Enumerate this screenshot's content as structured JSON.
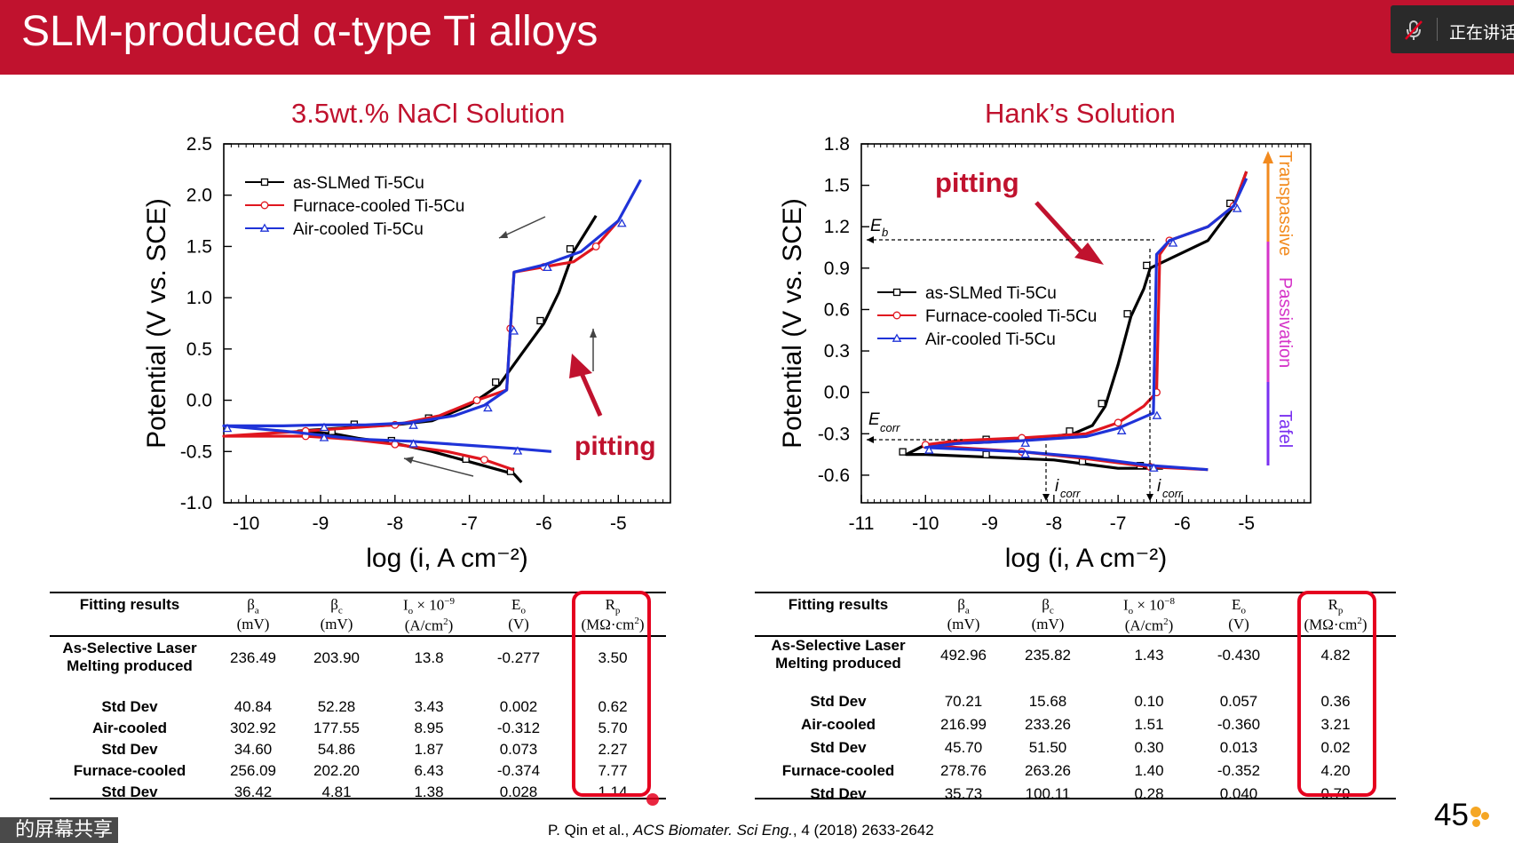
{
  "slide": {
    "title": "SLM-produced α-type Ti alloys",
    "page_number": "45",
    "citation_pre": "P. Qin et al., ",
    "citation_journal": "ACS Biomater. Sci Eng.",
    "citation_post": ", 4 (2018) 2633-2642",
    "share_banner": "的屏幕共享",
    "meeting_status": "正在讲话",
    "accent_color": "#c0122e"
  },
  "chart_data": [
    {
      "type": "line",
      "title": "3.5wt.% NaCl Solution",
      "xlabel": "log (i, A cm⁻²)",
      "ylabel": "Potential (V vs. SCE)",
      "xlim": [
        -10.3,
        -4.3
      ],
      "ylim": [
        -1.0,
        2.5
      ],
      "xticks": [
        -10,
        -9,
        -8,
        -7,
        -6,
        -5
      ],
      "yticks": [
        -1.0,
        -0.5,
        0.0,
        0.5,
        1.0,
        1.5,
        2.0,
        2.5
      ],
      "legend_position": "top-left",
      "annotations": [
        "pitting"
      ],
      "series": [
        {
          "name": "as-SLMed Ti-5Cu",
          "color": "#000000",
          "marker": "square",
          "x": [
            -6.3,
            -6.4,
            -6.6,
            -7.0,
            -7.5,
            -8.0,
            -8.5,
            -8.8,
            -9.3,
            -8.5,
            -8.0,
            -7.5,
            -7.0,
            -6.6,
            -6.3,
            -6.0,
            -5.8,
            -5.6,
            -5.3
          ],
          "y": [
            -0.8,
            -0.72,
            -0.68,
            -0.6,
            -0.5,
            -0.42,
            -0.37,
            -0.33,
            -0.3,
            -0.26,
            -0.24,
            -0.2,
            -0.05,
            0.15,
            0.45,
            0.75,
            1.05,
            1.45,
            1.8
          ]
        },
        {
          "name": "Furnace-cooled Ti-5Cu",
          "color": "#e0161f",
          "marker": "circle",
          "x": [
            -6.4,
            -6.8,
            -7.3,
            -8.0,
            -8.6,
            -9.2,
            -10.3,
            -9.2,
            -8.6,
            -8.0,
            -7.4,
            -6.9,
            -6.5,
            -6.45,
            -6.4,
            -6.0,
            -5.6,
            -5.3,
            -5.0
          ],
          "y": [
            -0.68,
            -0.58,
            -0.5,
            -0.43,
            -0.38,
            -0.35,
            -0.35,
            -0.3,
            -0.27,
            -0.24,
            -0.15,
            0.0,
            0.1,
            0.7,
            1.25,
            1.3,
            1.35,
            1.5,
            1.75
          ]
        },
        {
          "name": "Air-cooled Ti-5Cu",
          "color": "#1f33d8",
          "marker": "triangle",
          "x": [
            -5.9,
            -6.4,
            -7.0,
            -7.8,
            -8.5,
            -9.0,
            -9.5,
            -10.3,
            -9.5,
            -9.0,
            -8.4,
            -7.8,
            -7.2,
            -6.8,
            -6.5,
            -6.45,
            -6.4,
            -6.0,
            -5.5,
            -5.0,
            -4.7
          ],
          "y": [
            -0.5,
            -0.47,
            -0.44,
            -0.4,
            -0.38,
            -0.34,
            -0.3,
            -0.25,
            -0.25,
            -0.24,
            -0.24,
            -0.22,
            -0.15,
            -0.05,
            0.1,
            0.7,
            1.25,
            1.32,
            1.45,
            1.75,
            2.15
          ]
        }
      ]
    },
    {
      "type": "line",
      "title": "Hank’s Solution",
      "xlabel": "log (i, A cm⁻²)",
      "ylabel": "Potential (V vs. SCE)",
      "xlim": [
        -11.0,
        -4.0
      ],
      "ylim": [
        -0.8,
        1.8
      ],
      "xticks": [
        -11,
        -10,
        -9,
        -8,
        -7,
        -6,
        -5
      ],
      "yticks": [
        -0.6,
        -0.3,
        0.0,
        0.3,
        0.6,
        0.9,
        1.2,
        1.5,
        1.8
      ],
      "legend_position": "middle-left",
      "annotations": [
        "pitting",
        "E",
        "b",
        "E",
        "corr",
        "i",
        "corr",
        "i",
        "corr"
      ],
      "regions": [
        "Transpassive",
        "Passivation",
        "Tafel"
      ],
      "region_colors": [
        "#f28a1e",
        "#d534c8",
        "#7a30f0"
      ],
      "series": [
        {
          "name": "as-SLMed Ti-5Cu",
          "color": "#000000",
          "marker": "square",
          "x": [
            -6.3,
            -6.6,
            -7.0,
            -7.5,
            -8.0,
            -9.0,
            -10.0,
            -10.3,
            -10.0,
            -9.0,
            -8.2,
            -7.7,
            -7.4,
            -7.2,
            -7.0,
            -6.8,
            -6.6,
            -6.5,
            -5.6,
            -5.2,
            -5.0
          ],
          "y": [
            -0.55,
            -0.55,
            -0.55,
            -0.52,
            -0.49,
            -0.47,
            -0.45,
            -0.45,
            -0.38,
            -0.36,
            -0.33,
            -0.3,
            -0.24,
            -0.1,
            0.2,
            0.55,
            0.75,
            0.9,
            1.1,
            1.35,
            1.6
          ]
        },
        {
          "name": "Furnace-cooled Ti-5Cu",
          "color": "#e0161f",
          "marker": "circle",
          "x": [
            -5.6,
            -6.5,
            -7.5,
            -8.5,
            -9.5,
            -10.0,
            -9.5,
            -8.5,
            -7.5,
            -7.0,
            -6.6,
            -6.4,
            -6.35,
            -6.2,
            -5.6,
            -5.2,
            -5.0
          ],
          "y": [
            -0.56,
            -0.54,
            -0.48,
            -0.43,
            -0.4,
            -0.38,
            -0.35,
            -0.33,
            -0.3,
            -0.22,
            -0.1,
            0.0,
            1.0,
            1.1,
            1.2,
            1.35,
            1.6
          ]
        },
        {
          "name": "Air-cooled Ti-5Cu",
          "color": "#1f33d8",
          "marker": "triangle",
          "x": [
            -5.6,
            -6.5,
            -7.5,
            -8.5,
            -9.5,
            -10.0,
            -9.5,
            -8.5,
            -7.5,
            -7.0,
            -6.6,
            -6.45,
            -6.4,
            -6.2,
            -5.6,
            -5.2,
            -5.0
          ],
          "y": [
            -0.56,
            -0.53,
            -0.47,
            -0.43,
            -0.41,
            -0.4,
            -0.37,
            -0.35,
            -0.32,
            -0.26,
            -0.18,
            -0.15,
            1.0,
            1.1,
            1.2,
            1.35,
            1.55
          ]
        }
      ]
    }
  ],
  "tables": [
    {
      "header": [
        "Fitting results",
        "β",
        "a",
        "(mV)",
        "β",
        "c",
        "(mV)",
        "I",
        "o",
        " × 10",
        "−9",
        "(A/cm",
        "2",
        ")",
        "E",
        "o",
        "(V)",
        "R",
        "p",
        "(MΩ·cm",
        "2",
        ")"
      ],
      "rows": [
        [
          "As-Selective Laser",
          "Melting produced",
          "236.49",
          "203.90",
          "13.8",
          "-0.277",
          "3.50"
        ],
        [
          "Std Dev",
          "",
          "40.84",
          "52.28",
          "3.43",
          "0.002",
          "0.62"
        ],
        [
          "Air-cooled",
          "",
          "302.92",
          "177.55",
          "8.95",
          "-0.312",
          "5.70"
        ],
        [
          "Std Dev",
          "",
          "34.60",
          "54.86",
          "1.87",
          "0.073",
          "2.27"
        ],
        [
          "Furnace-cooled",
          "",
          "256.09",
          "202.20",
          "6.43",
          "-0.374",
          "7.77"
        ],
        [
          "Std Dev",
          "",
          "36.42",
          "4.81",
          "1.38",
          "0.028",
          "1.14"
        ]
      ]
    },
    {
      "header": [
        "Fitting results",
        "β",
        "a",
        "(mV)",
        "β",
        "c",
        "(mV)",
        "I",
        "o",
        " × 10",
        "−8",
        "(A/cm",
        "2",
        ")",
        "E",
        "o",
        "(V)",
        "R",
        "p",
        "(MΩ·cm",
        "2",
        ")"
      ],
      "rows": [
        [
          "As-Selective Laser",
          "Melting produced",
          "492.96",
          "235.82",
          "1.43",
          "-0.430",
          "4.82"
        ],
        [
          "Std Dev",
          "",
          "70.21",
          "15.68",
          "0.10",
          "0.057",
          "0.36"
        ],
        [
          "Air-cooled",
          "",
          "216.99",
          "233.26",
          "1.51",
          "-0.360",
          "3.21"
        ],
        [
          "Std Dev",
          "",
          "45.70",
          "51.50",
          "0.30",
          "0.013",
          "0.02"
        ],
        [
          "Furnace-cooled",
          "",
          "278.76",
          "263.26",
          "1.40",
          "-0.352",
          "4.20"
        ],
        [
          "Std Dev",
          "",
          "35.73",
          "100.11",
          "0.28",
          "0.040",
          "0.79"
        ]
      ]
    }
  ]
}
